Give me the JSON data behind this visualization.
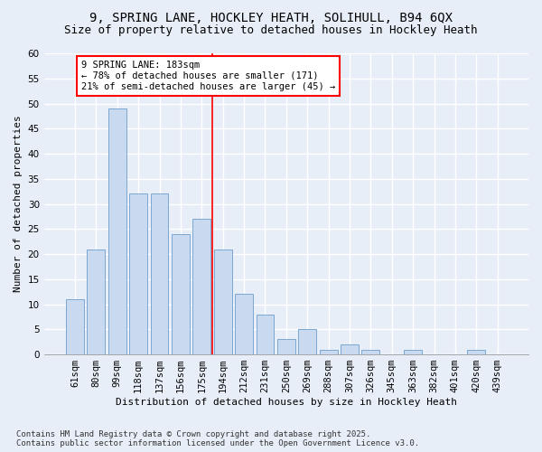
{
  "title1": "9, SPRING LANE, HOCKLEY HEATH, SOLIHULL, B94 6QX",
  "title2": "Size of property relative to detached houses in Hockley Heath",
  "xlabel": "Distribution of detached houses by size in Hockley Heath",
  "ylabel": "Number of detached properties",
  "categories": [
    "61sqm",
    "80sqm",
    "99sqm",
    "118sqm",
    "137sqm",
    "156sqm",
    "175sqm",
    "194sqm",
    "212sqm",
    "231sqm",
    "250sqm",
    "269sqm",
    "288sqm",
    "307sqm",
    "326sqm",
    "345sqm",
    "363sqm",
    "382sqm",
    "401sqm",
    "420sqm",
    "439sqm"
  ],
  "values": [
    11,
    21,
    49,
    32,
    32,
    24,
    27,
    21,
    12,
    8,
    3,
    5,
    1,
    2,
    1,
    0,
    1,
    0,
    0,
    1,
    0
  ],
  "bar_color": "#c9d9ef",
  "bar_edge_color": "#7ba7d0",
  "vline_x": 6.5,
  "annotation_title": "9 SPRING LANE: 183sqm",
  "annotation_line1": "← 78% of detached houses are smaller (171)",
  "annotation_line2": "21% of semi-detached houses are larger (45) →",
  "annotation_box_color": "white",
  "annotation_box_edge_color": "red",
  "vline_color": "red",
  "ylim": [
    0,
    60
  ],
  "yticks": [
    0,
    5,
    10,
    15,
    20,
    25,
    30,
    35,
    40,
    45,
    50,
    55,
    60
  ],
  "background_color": "#e8eef8",
  "grid_color": "white",
  "footer": "Contains HM Land Registry data © Crown copyright and database right 2025.\nContains public sector information licensed under the Open Government Licence v3.0.",
  "title_fontsize": 10,
  "subtitle_fontsize": 9,
  "axis_label_fontsize": 8,
  "tick_fontsize": 7.5,
  "annotation_fontsize": 7.5
}
